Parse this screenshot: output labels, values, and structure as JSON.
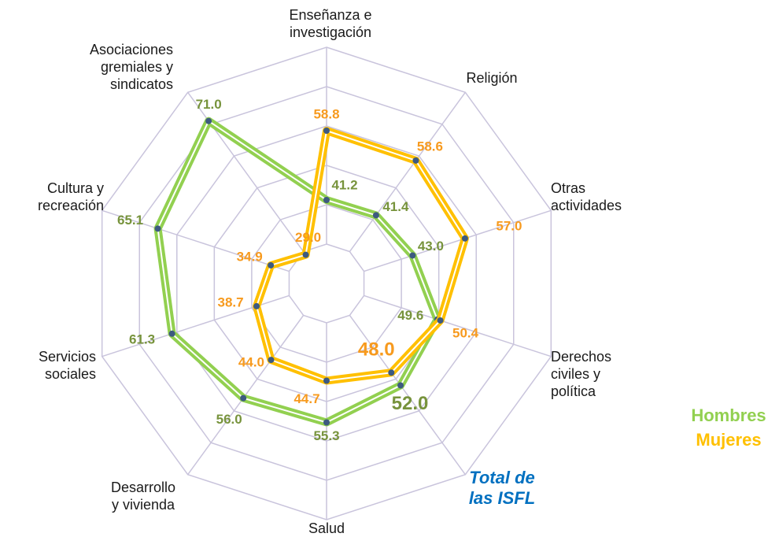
{
  "chart_data": {
    "type": "radar",
    "categories": [
      "Enseñanza e\ninvestigación",
      "Religión",
      "Otras\nactividades",
      "Derechos\nciviles y\npolítica",
      "Total de\nlas ISFL",
      "Salud",
      "Desarrollo\ny vivienda",
      "Servicios\nsociales",
      "Cultura y\nrecreación",
      "Asociaciones\ngremiales y\nsindicatos"
    ],
    "series": [
      {
        "name": "Hombres",
        "color": "#92d050",
        "label_color": "#77933c",
        "values": [
          41.2,
          41.4,
          43.0,
          49.6,
          52.0,
          55.3,
          56.0,
          61.3,
          65.1,
          71.0
        ],
        "value_labels": [
          "41.2",
          "41.4",
          "43.0",
          "49.6",
          "52.0",
          "55.3",
          "56.0",
          "61.3",
          "65.1",
          "71.0"
        ]
      },
      {
        "name": "Mujeres",
        "color": "#ffc000",
        "label_color": "#f79a1e",
        "values": [
          58.8,
          58.6,
          57.0,
          50.4,
          48.0,
          44.7,
          44.0,
          38.7,
          34.9,
          29.0
        ],
        "value_labels": [
          "58.8",
          "58.6",
          "57.0",
          "50.4",
          "48.0",
          "44.7",
          "44.0",
          "38.7",
          "34.9",
          "29.0"
        ]
      }
    ],
    "rlim": [
      20,
      80
    ],
    "rticks": [
      20,
      30,
      40,
      50,
      60,
      70,
      80
    ],
    "grid": true,
    "highlight_category": 4,
    "legend": "right"
  }
}
